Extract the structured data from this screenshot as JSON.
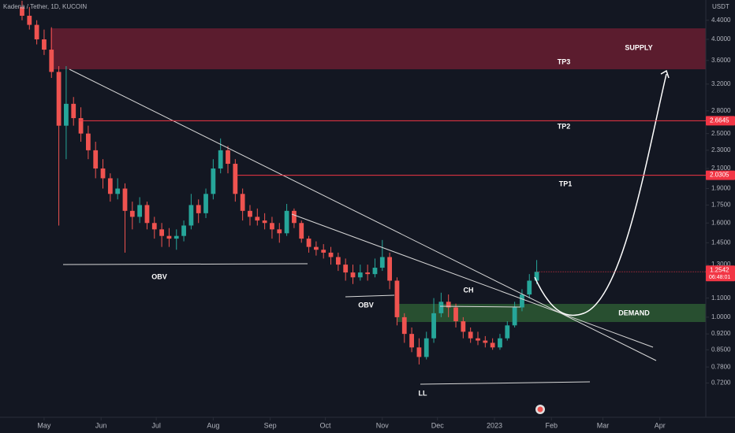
{
  "chart_data": {
    "type": "candlestick",
    "title": "Kadena / Tether, 1D, KUCOIN",
    "currency": "USDT",
    "log_scale": true,
    "grid": false,
    "up_color": "#26a69a",
    "down_color": "#ef5350",
    "xlim": [
      -24,
      360
    ],
    "ylim": [
      0.607,
      4.868
    ],
    "xticks": [
      {
        "value": 0,
        "label": "May"
      },
      {
        "value": 31,
        "label": "Jun"
      },
      {
        "value": 61,
        "label": "Jul"
      },
      {
        "value": 92,
        "label": "Aug"
      },
      {
        "value": 123,
        "label": "Sep"
      },
      {
        "value": 153,
        "label": "Oct"
      },
      {
        "value": 184,
        "label": "Nov"
      },
      {
        "value": 214,
        "label": "Dec"
      },
      {
        "value": 245,
        "label": "2023"
      },
      {
        "value": 276,
        "label": "Feb"
      },
      {
        "value": 304,
        "label": "Mar"
      },
      {
        "value": 335,
        "label": "Apr"
      }
    ],
    "yticks": [
      {
        "value": 4.4,
        "label": "4.4000"
      },
      {
        "value": 4.0,
        "label": "4.0000"
      },
      {
        "value": 3.6,
        "label": "3.6000"
      },
      {
        "value": 3.2,
        "label": "3.2000"
      },
      {
        "value": 2.8,
        "label": "2.8000"
      },
      {
        "value": 2.5,
        "label": "2.5000"
      },
      {
        "value": 2.3,
        "label": "2.3000"
      },
      {
        "value": 2.1,
        "label": "2.1000"
      },
      {
        "value": 1.9,
        "label": "1.9000"
      },
      {
        "value": 1.75,
        "label": "1.7500"
      },
      {
        "value": 1.6,
        "label": "1.6000"
      },
      {
        "value": 1.45,
        "label": "1.4500"
      },
      {
        "value": 1.3,
        "label": "1.3000"
      },
      {
        "value": 1.1,
        "label": "1.1000"
      },
      {
        "value": 1.0,
        "label": "1.0000"
      },
      {
        "value": 0.92,
        "label": "0.9200"
      },
      {
        "value": 0.85,
        "label": "0.8500"
      },
      {
        "value": 0.78,
        "label": "0.7800"
      },
      {
        "value": 0.72,
        "label": "0.7200"
      }
    ],
    "x": [
      -12,
      -8,
      -4,
      0,
      4,
      8,
      12,
      16,
      20,
      24,
      28,
      32,
      36,
      40,
      44,
      48,
      52,
      56,
      60,
      64,
      68,
      72,
      76,
      80,
      84,
      88,
      92,
      96,
      100,
      104,
      108,
      112,
      116,
      120,
      124,
      128,
      132,
      136,
      140,
      144,
      148,
      152,
      156,
      160,
      164,
      168,
      172,
      176,
      180,
      184,
      188,
      192,
      196,
      200,
      204,
      208,
      212,
      216,
      220,
      224,
      228,
      232,
      236,
      240,
      244,
      248,
      252,
      256,
      260,
      264,
      268
    ],
    "open": [
      4.7,
      4.5,
      4.3,
      4.0,
      3.8,
      3.4,
      2.6,
      2.9,
      2.7,
      2.5,
      2.3,
      2.1,
      2.0,
      1.85,
      1.9,
      1.7,
      1.65,
      1.75,
      1.6,
      1.55,
      1.5,
      1.48,
      1.5,
      1.58,
      1.75,
      1.68,
      1.85,
      2.1,
      2.3,
      2.15,
      1.85,
      1.7,
      1.65,
      1.62,
      1.6,
      1.55,
      1.52,
      1.7,
      1.6,
      1.48,
      1.42,
      1.4,
      1.38,
      1.35,
      1.3,
      1.25,
      1.22,
      1.25,
      1.24,
      1.28,
      1.35,
      1.2,
      1.0,
      0.92,
      0.86,
      0.82,
      0.9,
      1.02,
      1.08,
      1.05,
      0.98,
      0.93,
      0.9,
      0.89,
      0.88,
      0.86,
      0.9,
      0.96,
      1.05,
      1.12,
      1.2
    ],
    "high": [
      4.85,
      4.7,
      4.4,
      4.2,
      4.25,
      3.5,
      3.5,
      3.0,
      2.85,
      2.6,
      2.4,
      2.2,
      2.05,
      2.0,
      1.95,
      1.78,
      1.82,
      1.78,
      1.65,
      1.6,
      1.56,
      1.55,
      1.62,
      1.85,
      1.8,
      1.9,
      2.2,
      2.44,
      2.35,
      2.2,
      1.9,
      1.75,
      1.72,
      1.68,
      1.65,
      1.6,
      1.76,
      1.72,
      1.62,
      1.5,
      1.46,
      1.44,
      1.42,
      1.38,
      1.34,
      1.3,
      1.3,
      1.3,
      1.34,
      1.47,
      1.38,
      1.22,
      1.02,
      0.95,
      0.9,
      0.93,
      1.1,
      1.13,
      1.12,
      1.07,
      1.0,
      0.95,
      0.93,
      0.91,
      0.9,
      0.92,
      0.98,
      1.08,
      1.15,
      1.24,
      1.33
    ],
    "low": [
      4.4,
      4.2,
      3.9,
      3.7,
      3.3,
      1.58,
      2.2,
      2.6,
      2.4,
      2.2,
      2.0,
      1.9,
      1.78,
      1.8,
      1.38,
      1.55,
      1.6,
      1.55,
      1.48,
      1.42,
      1.42,
      1.4,
      1.46,
      1.55,
      1.6,
      1.64,
      1.8,
      2.05,
      2.05,
      1.78,
      1.62,
      1.58,
      1.58,
      1.55,
      1.48,
      1.45,
      1.5,
      1.56,
      1.45,
      1.38,
      1.36,
      1.34,
      1.3,
      1.26,
      1.2,
      1.18,
      1.2,
      1.2,
      1.22,
      1.26,
      1.15,
      0.96,
      0.88,
      0.84,
      0.79,
      0.81,
      0.88,
      1.0,
      1.0,
      0.95,
      0.9,
      0.88,
      0.87,
      0.86,
      0.85,
      0.85,
      0.89,
      0.95,
      1.03,
      1.1,
      1.18
    ],
    "close": [
      4.5,
      4.3,
      4.0,
      3.8,
      3.4,
      2.6,
      2.9,
      2.7,
      2.5,
      2.3,
      2.1,
      2.0,
      1.85,
      1.9,
      1.7,
      1.65,
      1.75,
      1.6,
      1.55,
      1.5,
      1.48,
      1.5,
      1.58,
      1.75,
      1.68,
      1.85,
      2.1,
      2.3,
      2.15,
      1.85,
      1.7,
      1.65,
      1.62,
      1.6,
      1.55,
      1.52,
      1.7,
      1.6,
      1.48,
      1.42,
      1.4,
      1.38,
      1.35,
      1.3,
      1.25,
      1.22,
      1.25,
      1.24,
      1.28,
      1.35,
      1.2,
      1.0,
      0.92,
      0.86,
      0.82,
      0.9,
      1.02,
      1.08,
      1.05,
      0.98,
      0.93,
      0.9,
      0.89,
      0.88,
      0.86,
      0.9,
      0.96,
      1.05,
      1.12,
      1.2,
      1.2542
    ],
    "price_levels": [
      2.6645,
      2.0305
    ],
    "last_price": 1.2542,
    "countdown": "06:48:01",
    "annotations": [
      "SUPPLY",
      "TP3",
      "TP2",
      "TP1",
      "DEMAND",
      "OBV",
      "OBV",
      "CH",
      "LL"
    ]
  }
}
